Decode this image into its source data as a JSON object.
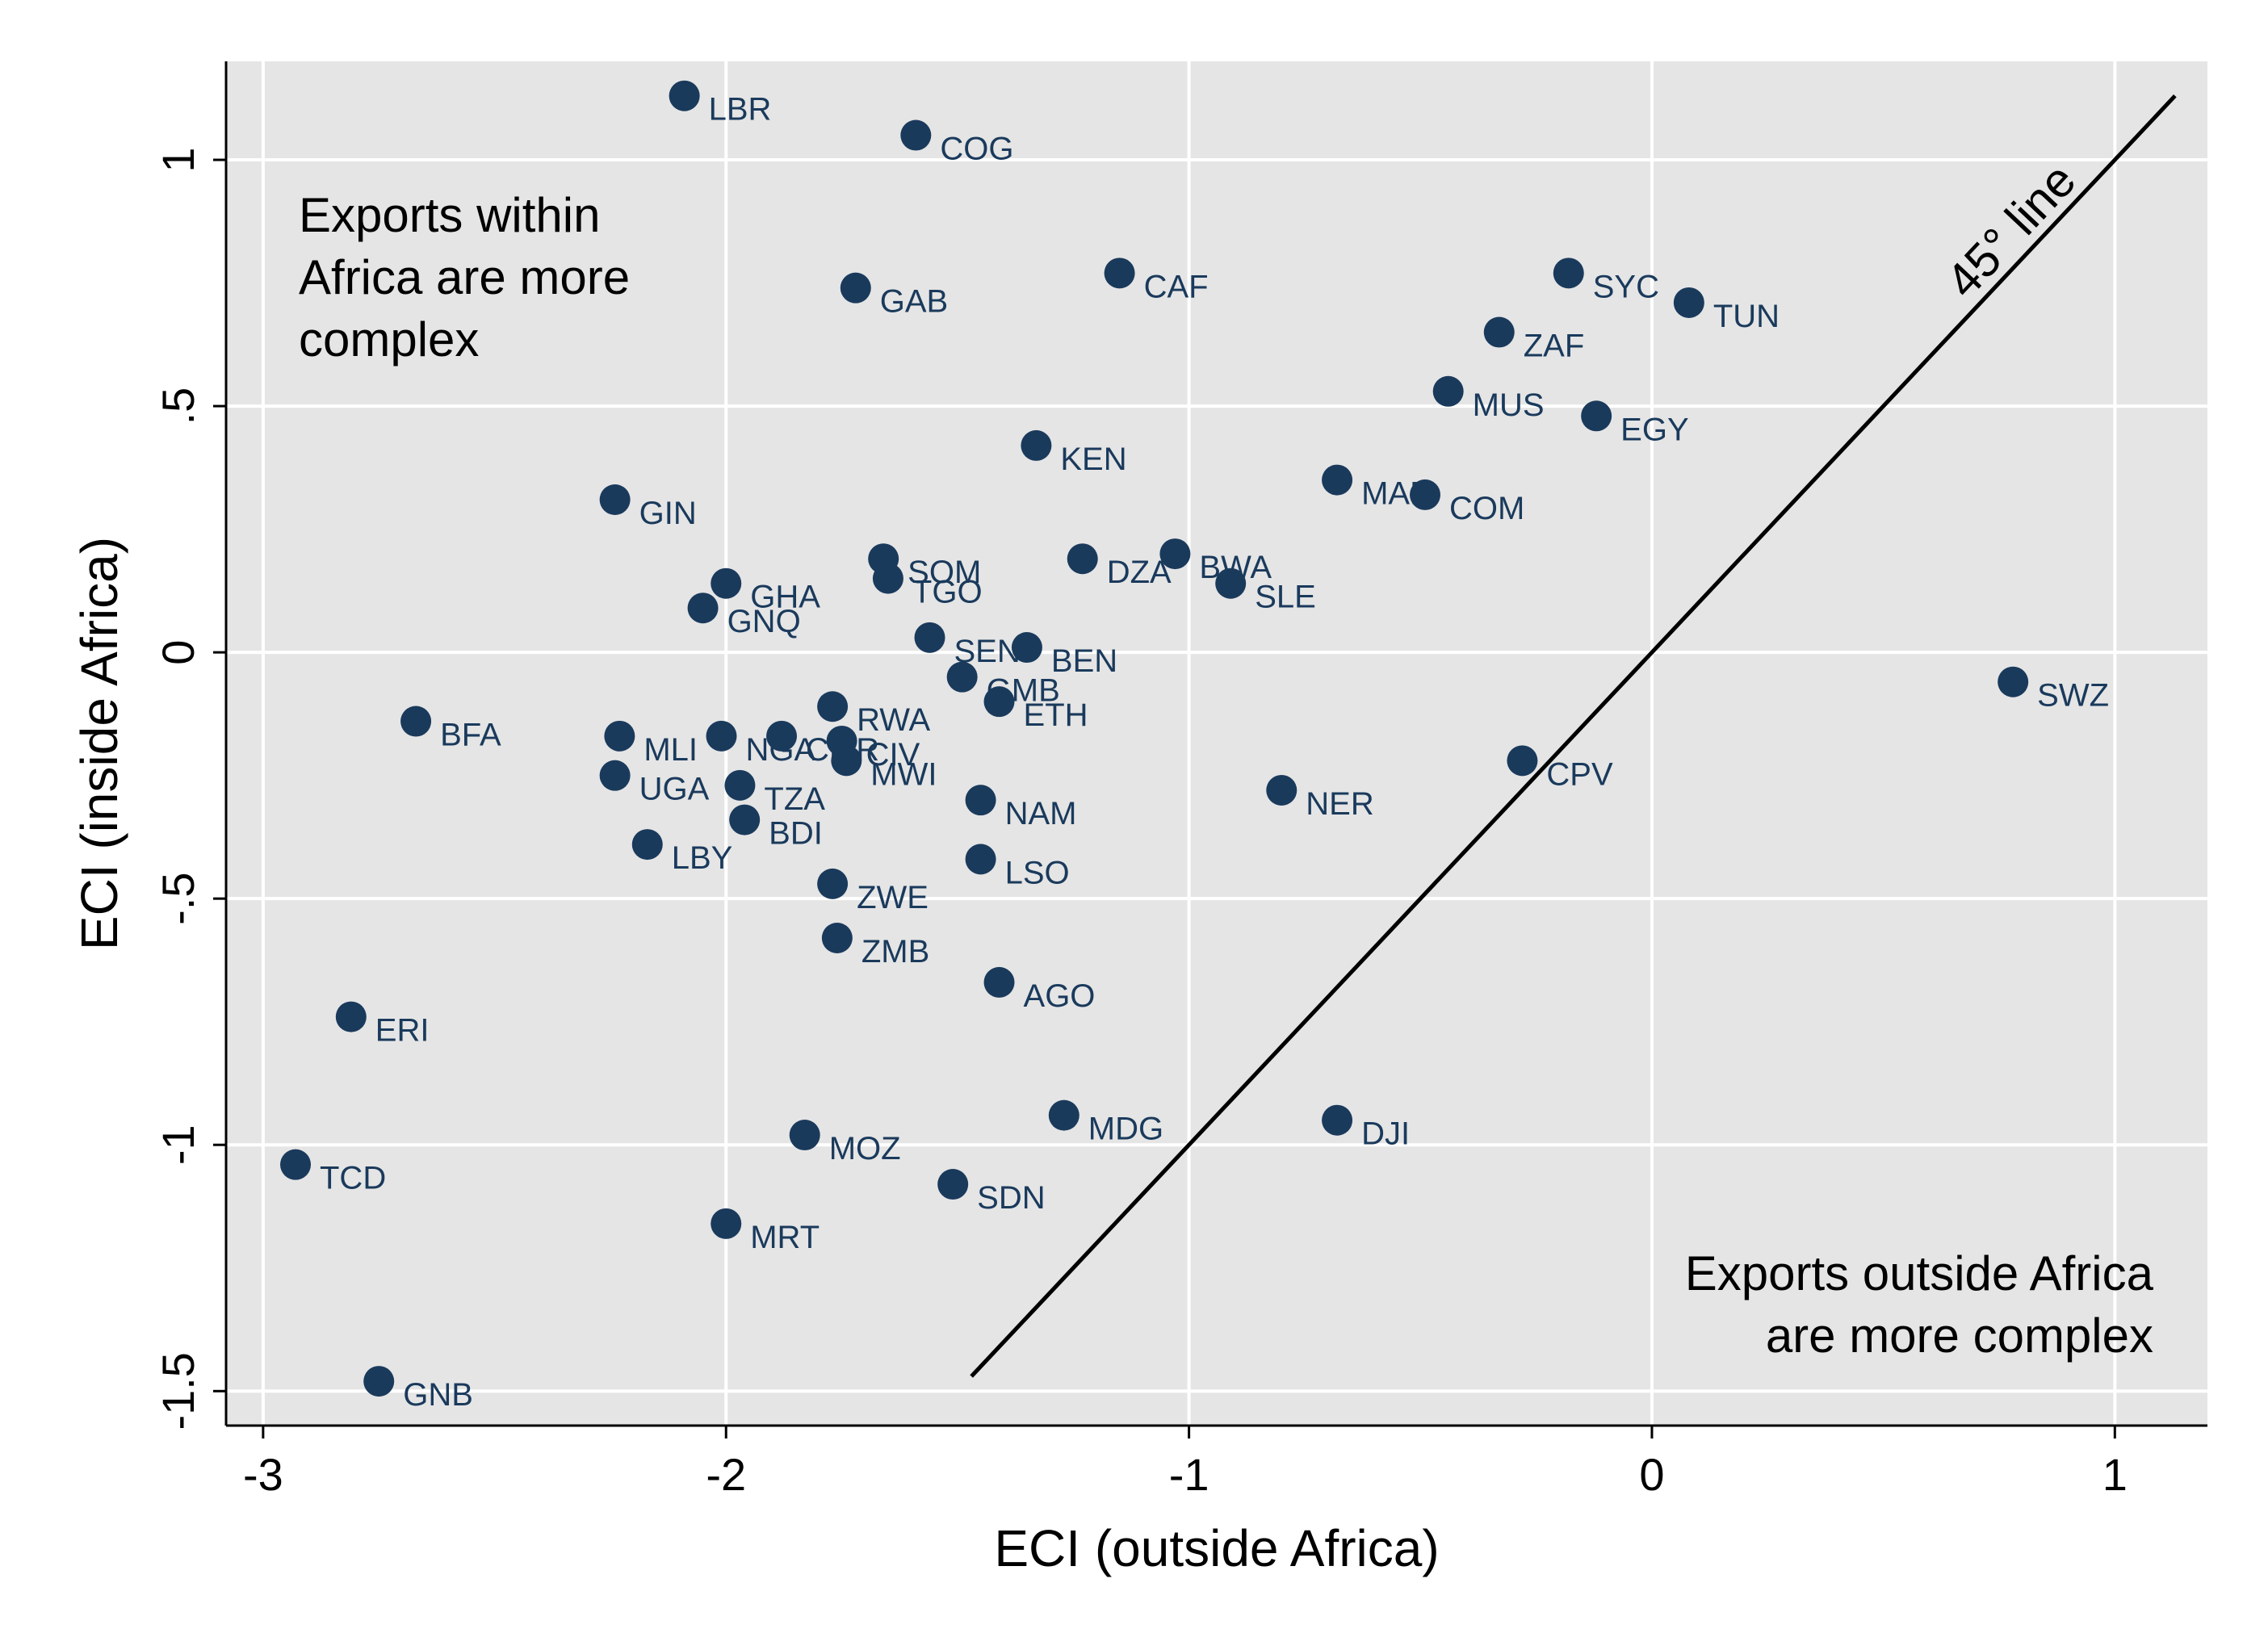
{
  "chart_data": {
    "type": "scatter",
    "xlabel": "ECI (outside Africa)",
    "ylabel": "ECI (inside Africa)",
    "xlim": [
      -3.08,
      1.2
    ],
    "ylim": [
      -1.57,
      1.2
    ],
    "x_ticks": [
      {
        "value": -3,
        "label": "-3"
      },
      {
        "value": -2,
        "label": "-2"
      },
      {
        "value": -1,
        "label": "-1"
      },
      {
        "value": 0,
        "label": "0"
      },
      {
        "value": 1,
        "label": "1"
      }
    ],
    "y_ticks": [
      {
        "value": -1.5,
        "label": "-1.5"
      },
      {
        "value": -1,
        "label": "-1"
      },
      {
        "value": -0.5,
        "label": "-.5"
      },
      {
        "value": 0,
        "label": "0"
      },
      {
        "value": 0.5,
        "label": ".5"
      },
      {
        "value": 1,
        "label": "1"
      }
    ],
    "grid": true,
    "colors": {
      "plot_background": "#e5e5e5",
      "grid": "#ffffff",
      "marker": "#1a3a5c",
      "line": "#000000"
    },
    "reference_line": {
      "label": "45° line",
      "x_range": [
        -1.47,
        1.13
      ]
    },
    "annotations": [
      {
        "lines": [
          "Exports within",
          "Africa are more",
          "complex"
        ],
        "position": "top-left"
      },
      {
        "lines": [
          "Exports outside Africa",
          "are more complex"
        ],
        "position": "bottom-right"
      }
    ],
    "points": [
      {
        "label": "LBR",
        "x": -2.09,
        "y": 1.13
      },
      {
        "label": "COG",
        "x": -1.59,
        "y": 1.05
      },
      {
        "label": "GAB",
        "x": -1.72,
        "y": 0.74
      },
      {
        "label": "CAF",
        "x": -1.15,
        "y": 0.77
      },
      {
        "label": "SYC",
        "x": -0.18,
        "y": 0.77
      },
      {
        "label": "TUN",
        "x": 0.08,
        "y": 0.71
      },
      {
        "label": "ZAF",
        "x": -0.33,
        "y": 0.65
      },
      {
        "label": "MUS",
        "x": -0.44,
        "y": 0.53
      },
      {
        "label": "EGY",
        "x": -0.12,
        "y": 0.48
      },
      {
        "label": "KEN",
        "x": -1.33,
        "y": 0.42
      },
      {
        "label": "MAR",
        "x": -0.68,
        "y": 0.35
      },
      {
        "label": "COM",
        "x": -0.49,
        "y": 0.32
      },
      {
        "label": "GIN",
        "x": -2.24,
        "y": 0.31
      },
      {
        "label": "SOM",
        "x": -1.66,
        "y": 0.19
      },
      {
        "label": "DZA",
        "x": -1.23,
        "y": 0.19
      },
      {
        "label": "BWA",
        "x": -1.03,
        "y": 0.2
      },
      {
        "label": "GHA",
        "x": -2.0,
        "y": 0.14
      },
      {
        "label": "TGO",
        "x": -1.65,
        "y": 0.15
      },
      {
        "label": "SLE",
        "x": -0.91,
        "y": 0.14
      },
      {
        "label": "GNQ",
        "x": -2.05,
        "y": 0.09
      },
      {
        "label": "SEN",
        "x": -1.56,
        "y": 0.03
      },
      {
        "label": "BEN",
        "x": -1.35,
        "y": 0.01
      },
      {
        "label": "GMB",
        "x": -1.49,
        "y": -0.05
      },
      {
        "label": "SWZ",
        "x": 0.78,
        "y": -0.06
      },
      {
        "label": "RWA",
        "x": -1.77,
        "y": -0.11
      },
      {
        "label": "ETH",
        "x": -1.41,
        "y": -0.1
      },
      {
        "label": "BFA",
        "x": -2.67,
        "y": -0.14
      },
      {
        "label": "MLI",
        "x": -2.23,
        "y": -0.17
      },
      {
        "label": "NGA",
        "x": -2.01,
        "y": -0.17
      },
      {
        "label": "CMR",
        "x": -1.88,
        "y": -0.17
      },
      {
        "label": "CIV",
        "x": -1.75,
        "y": -0.18
      },
      {
        "label": "MWI",
        "x": -1.74,
        "y": -0.22
      },
      {
        "label": "CPV",
        "x": -0.28,
        "y": -0.22
      },
      {
        "label": "UGA",
        "x": -2.24,
        "y": -0.25
      },
      {
        "label": "TZA",
        "x": -1.97,
        "y": -0.27
      },
      {
        "label": "NER",
        "x": -0.8,
        "y": -0.28
      },
      {
        "label": "NAM",
        "x": -1.45,
        "y": -0.3
      },
      {
        "label": "BDI",
        "x": -1.96,
        "y": -0.34
      },
      {
        "label": "LBY",
        "x": -2.17,
        "y": -0.39
      },
      {
        "label": "LSO",
        "x": -1.45,
        "y": -0.42
      },
      {
        "label": "ZWE",
        "x": -1.77,
        "y": -0.47
      },
      {
        "label": "ZMB",
        "x": -1.76,
        "y": -0.58
      },
      {
        "label": "AGO",
        "x": -1.41,
        "y": -0.67
      },
      {
        "label": "ERI",
        "x": -2.81,
        "y": -0.74
      },
      {
        "label": "MDG",
        "x": -1.27,
        "y": -0.94
      },
      {
        "label": "DJI",
        "x": -0.68,
        "y": -0.95
      },
      {
        "label": "MOZ",
        "x": -1.83,
        "y": -0.98
      },
      {
        "label": "TCD",
        "x": -2.93,
        "y": -1.04
      },
      {
        "label": "SDN",
        "x": -1.51,
        "y": -1.08
      },
      {
        "label": "MRT",
        "x": -2.0,
        "y": -1.16
      },
      {
        "label": "GNB",
        "x": -2.75,
        "y": -1.48
      }
    ]
  }
}
